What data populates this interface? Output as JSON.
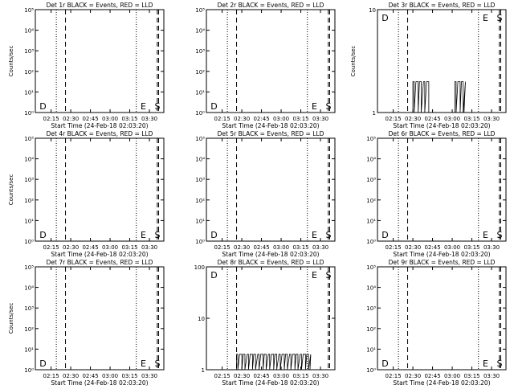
{
  "figure": {
    "start_time_label": "Start Time (24-Feb-18 02:03:20)"
  },
  "chart_data": [
    {
      "type": "line",
      "title": "Det 1r BLACK = Events, RED = LLD",
      "xlabel": "Start Time (24-Feb-18 02:03:20)",
      "ylabel": "Counts/sec",
      "scale": "log",
      "yticks": [
        "10⁰",
        "10¹",
        "10²",
        "10³",
        "10⁴",
        "10⁵"
      ],
      "xticks": [
        "02:15",
        "02:30",
        "02:45",
        "03:00",
        "03:15",
        "03:30"
      ],
      "markers": [
        {
          "label": "D",
          "x": "02:05"
        },
        {
          "label": "E",
          "x": "03:22"
        },
        {
          "label": "S",
          "x": "03:37"
        }
      ],
      "series": []
    },
    {
      "type": "line",
      "title": "Det 2r BLACK = Events, RED = LLD",
      "xlabel": "Start Time (24-Feb-18 02:03:20)",
      "ylabel": "",
      "scale": "log",
      "yticks": [
        "10⁰",
        "10¹",
        "10²",
        "10³",
        "10⁴",
        "10⁵"
      ],
      "xticks": [
        "02:15",
        "02:30",
        "02:45",
        "03:00",
        "03:15",
        "03:30"
      ],
      "markers": [
        {
          "label": "D",
          "x": "02:05"
        },
        {
          "label": "E",
          "x": "03:22"
        },
        {
          "label": "S",
          "x": "03:37"
        }
      ],
      "series": []
    },
    {
      "type": "line",
      "title": "Det 3r BLACK = Events, RED = LLD",
      "xlabel": "Start Time (24-Feb-18 02:03:20)",
      "ylabel": "Counts/sec",
      "scale": "log",
      "yticks": [
        "1",
        "10"
      ],
      "xticks": [
        "02:15",
        "02:30",
        "02:45",
        "03:00",
        "03:15",
        "03:30"
      ],
      "markers": [
        {
          "label": "D",
          "x": "02:05"
        },
        {
          "label": "E",
          "x": "03:22"
        },
        {
          "label": "S",
          "x": "03:37"
        }
      ],
      "series": [
        {
          "color": "#000000",
          "burst": [
            [
              "02:30",
              "02:41"
            ],
            [
              "03:02",
              "03:09"
            ]
          ],
          "level": 2
        }
      ]
    },
    {
      "type": "line",
      "title": "Det 4r BLACK = Events, RED = LLD",
      "xlabel": "Start Time (24-Feb-18 02:03:20)",
      "ylabel": "Counts/sec",
      "scale": "log",
      "yticks": [
        "10⁰",
        "10¹",
        "10²",
        "10³",
        "10⁴",
        "10⁵"
      ],
      "xticks": [
        "02:15",
        "02:30",
        "02:45",
        "03:00",
        "03:15",
        "03:30"
      ],
      "markers": [
        {
          "label": "D",
          "x": "02:05"
        },
        {
          "label": "E",
          "x": "03:22"
        },
        {
          "label": "S",
          "x": "03:37"
        }
      ],
      "series": []
    },
    {
      "type": "line",
      "title": "Det 5r BLACK = Events, RED = LLD",
      "xlabel": "Start Time (24-Feb-18 02:03:20)",
      "ylabel": "",
      "scale": "log",
      "yticks": [
        "10⁰",
        "10¹",
        "10²",
        "10³",
        "10⁴",
        "10⁵"
      ],
      "xticks": [
        "02:15",
        "02:30",
        "02:45",
        "03:00",
        "03:15",
        "03:30"
      ],
      "markers": [
        {
          "label": "D",
          "x": "02:05"
        },
        {
          "label": "E",
          "x": "03:22"
        },
        {
          "label": "S",
          "x": "03:37"
        }
      ],
      "series": []
    },
    {
      "type": "line",
      "title": "Det 6r BLACK = Events, RED = LLD",
      "xlabel": "Start Time (24-Feb-18 02:03:20)",
      "ylabel": "",
      "scale": "log",
      "yticks": [
        "10⁰",
        "10¹",
        "10²",
        "10³",
        "10⁴",
        "10⁵"
      ],
      "xticks": [
        "02:15",
        "02:30",
        "02:45",
        "03:00",
        "03:15",
        "03:30"
      ],
      "markers": [
        {
          "label": "D",
          "x": "02:05"
        },
        {
          "label": "E",
          "x": "03:22"
        },
        {
          "label": "S",
          "x": "03:37"
        }
      ],
      "series": []
    },
    {
      "type": "line",
      "title": "Det 7r BLACK = Events, RED = LLD",
      "xlabel": "Start Time (24-Feb-18 02:03:20)",
      "ylabel": "Counts/sec",
      "scale": "log",
      "yticks": [
        "10⁰",
        "10¹",
        "10²",
        "10³",
        "10⁴",
        "10⁵"
      ],
      "xticks": [
        "02:15",
        "02:30",
        "02:45",
        "03:00",
        "03:15",
        "03:30"
      ],
      "markers": [
        {
          "label": "D",
          "x": "02:05"
        },
        {
          "label": "E",
          "x": "03:22"
        },
        {
          "label": "S",
          "x": "03:37"
        }
      ],
      "series": []
    },
    {
      "type": "line",
      "title": "Det 8r BLACK = Events, RED = LLD",
      "xlabel": "Start Time (24-Feb-18 02:03:20)",
      "ylabel": "",
      "scale": "log",
      "yticks": [
        "1",
        "10",
        "100"
      ],
      "xticks": [
        "02:15",
        "02:30",
        "02:45",
        "03:00",
        "03:15",
        "03:30"
      ],
      "markers": [
        {
          "label": "D",
          "x": "02:05"
        },
        {
          "label": "E",
          "x": "03:22"
        },
        {
          "label": "S",
          "x": "03:37"
        }
      ],
      "series": [
        {
          "color": "#000000",
          "burst": [
            [
              "02:26",
              "03:22"
            ]
          ],
          "level": 2
        }
      ]
    },
    {
      "type": "line",
      "title": "Det 9r BLACK = Events, RED = LLD",
      "xlabel": "Start Time (24-Feb-18 02:03:20)",
      "ylabel": "",
      "scale": "log",
      "yticks": [
        "10⁰",
        "10¹",
        "10²",
        "10³",
        "10⁴",
        "10⁵"
      ],
      "xticks": [
        "02:15",
        "02:30",
        "02:45",
        "03:00",
        "03:15",
        "03:30"
      ],
      "markers": [
        {
          "label": "D",
          "x": "02:05"
        },
        {
          "label": "E",
          "x": "03:22"
        },
        {
          "label": "S",
          "x": "03:37"
        }
      ],
      "series": []
    }
  ]
}
